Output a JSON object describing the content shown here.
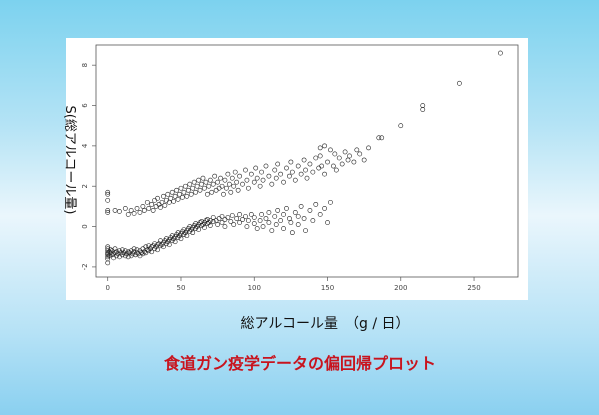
{
  "caption": "食道ガン疫学データの偏回帰プロット",
  "chart_data": {
    "type": "scatter",
    "title": "",
    "xlabel": "総アルコール量　（g / 日）",
    "ylabel": "S(総アルコール量)",
    "xlim": [
      -8,
      280
    ],
    "ylim": [
      -2.5,
      9
    ],
    "x_ticks": [
      0,
      50,
      100,
      150,
      200,
      250
    ],
    "y_ticks": [
      -2,
      0,
      2,
      4,
      6,
      8
    ],
    "x_tick_labels": [
      "0",
      "50",
      "100",
      "150",
      "200",
      "250"
    ],
    "y_tick_labels": [
      "-2",
      "0",
      "2",
      "4",
      "6",
      "8"
    ],
    "marker": "open-circle",
    "grid": false,
    "points": [
      [
        0,
        -1.1
      ],
      [
        0,
        -1.2
      ],
      [
        0,
        -1.3
      ],
      [
        0,
        -1.4
      ],
      [
        0,
        -1.5
      ],
      [
        0,
        -1.6
      ],
      [
        0,
        -1.0
      ],
      [
        0,
        -1.35
      ],
      [
        0,
        1.7
      ],
      [
        0,
        1.6
      ],
      [
        0,
        1.3
      ],
      [
        0,
        0.8
      ],
      [
        0,
        0.7
      ],
      [
        0,
        -1.8
      ],
      [
        1,
        -1.25
      ],
      [
        1,
        -1.45
      ],
      [
        2,
        -1.3
      ],
      [
        2,
        -1.15
      ],
      [
        3,
        -1.4
      ],
      [
        3,
        -1.2
      ],
      [
        4,
        -1.35
      ],
      [
        4,
        -1.55
      ],
      [
        5,
        -1.3
      ],
      [
        5,
        -1.1
      ],
      [
        6,
        -1.45
      ],
      [
        6,
        -1.25
      ],
      [
        7,
        -1.35
      ],
      [
        8,
        -1.5
      ],
      [
        8,
        -1.2
      ],
      [
        9,
        -1.3
      ],
      [
        10,
        -1.4
      ],
      [
        10,
        -1.15
      ],
      [
        11,
        -1.3
      ],
      [
        12,
        -1.45
      ],
      [
        12,
        -1.2
      ],
      [
        13,
        -1.35
      ],
      [
        14,
        -1.25
      ],
      [
        14,
        -1.5
      ],
      [
        15,
        -1.3
      ],
      [
        16,
        -1.2
      ],
      [
        16,
        -1.45
      ],
      [
        17,
        -1.35
      ],
      [
        18,
        -1.25
      ],
      [
        18,
        -1.1
      ],
      [
        19,
        -1.4
      ],
      [
        20,
        -1.3
      ],
      [
        20,
        -1.15
      ],
      [
        21,
        -1.35
      ],
      [
        22,
        -1.2
      ],
      [
        22,
        -1.45
      ],
      [
        23,
        -1.3
      ],
      [
        24,
        -1.1
      ],
      [
        24,
        -1.35
      ],
      [
        25,
        -1.25
      ],
      [
        26,
        -1.0
      ],
      [
        26,
        -1.3
      ],
      [
        27,
        -1.15
      ],
      [
        28,
        -1.2
      ],
      [
        28,
        -0.95
      ],
      [
        29,
        -1.1
      ],
      [
        30,
        -1.0
      ],
      [
        30,
        -1.25
      ],
      [
        31,
        -0.95
      ],
      [
        32,
        -1.1
      ],
      [
        32,
        -0.85
      ],
      [
        33,
        -1.0
      ],
      [
        34,
        -0.9
      ],
      [
        34,
        -1.15
      ],
      [
        35,
        -0.85
      ],
      [
        36,
        -0.95
      ],
      [
        36,
        -0.7
      ],
      [
        37,
        -0.9
      ],
      [
        38,
        -0.8
      ],
      [
        38,
        -1.0
      ],
      [
        39,
        -0.7
      ],
      [
        40,
        -0.85
      ],
      [
        40,
        -0.6
      ],
      [
        41,
        -0.75
      ],
      [
        42,
        -0.65
      ],
      [
        42,
        -0.9
      ],
      [
        43,
        -0.55
      ],
      [
        44,
        -0.7
      ],
      [
        44,
        -0.45
      ],
      [
        45,
        -0.6
      ],
      [
        46,
        -0.5
      ],
      [
        46,
        -0.75
      ],
      [
        47,
        -0.4
      ],
      [
        48,
        -0.55
      ],
      [
        48,
        -0.3
      ],
      [
        49,
        -0.45
      ],
      [
        50,
        -0.35
      ],
      [
        50,
        -0.6
      ],
      [
        51,
        -0.25
      ],
      [
        52,
        -0.4
      ],
      [
        52,
        -0.15
      ],
      [
        53,
        -0.3
      ],
      [
        54,
        -0.2
      ],
      [
        54,
        -0.45
      ],
      [
        55,
        -0.1
      ],
      [
        56,
        -0.25
      ],
      [
        56,
        0.0
      ],
      [
        57,
        -0.15
      ],
      [
        58,
        -0.05
      ],
      [
        58,
        -0.3
      ],
      [
        59,
        0.05
      ],
      [
        60,
        -0.1
      ],
      [
        60,
        0.15
      ],
      [
        61,
        0.0
      ],
      [
        62,
        0.1
      ],
      [
        62,
        -0.15
      ],
      [
        63,
        0.2
      ],
      [
        64,
        0.05
      ],
      [
        64,
        0.25
      ],
      [
        65,
        0.1
      ],
      [
        66,
        0.2
      ],
      [
        66,
        -0.05
      ],
      [
        67,
        0.3
      ],
      [
        68,
        0.15
      ],
      [
        68,
        0.35
      ],
      [
        69,
        0.2
      ],
      [
        70,
        0.3
      ],
      [
        70,
        0.05
      ],
      [
        72,
        0.25
      ],
      [
        72,
        0.45
      ],
      [
        74,
        0.3
      ],
      [
        75,
        0.1
      ],
      [
        76,
        0.4
      ],
      [
        78,
        0.2
      ],
      [
        78,
        0.5
      ],
      [
        80,
        0.35
      ],
      [
        80,
        0.0
      ],
      [
        82,
        0.45
      ],
      [
        84,
        0.25
      ],
      [
        85,
        0.55
      ],
      [
        86,
        0.1
      ],
      [
        88,
        0.4
      ],
      [
        90,
        0.6
      ],
      [
        90,
        0.2
      ],
      [
        92,
        0.35
      ],
      [
        94,
        0.5
      ],
      [
        95,
        0.0
      ],
      [
        96,
        0.3
      ],
      [
        98,
        0.6
      ],
      [
        100,
        0.15
      ],
      [
        100,
        0.45
      ],
      [
        102,
        -0.1
      ],
      [
        104,
        0.3
      ],
      [
        105,
        0.6
      ],
      [
        106,
        0.0
      ],
      [
        108,
        0.4
      ],
      [
        110,
        0.2
      ],
      [
        110,
        0.7
      ],
      [
        112,
        -0.2
      ],
      [
        114,
        0.5
      ],
      [
        115,
        0.1
      ],
      [
        116,
        0.8
      ],
      [
        118,
        0.3
      ],
      [
        120,
        0.6
      ],
      [
        120,
        -0.1
      ],
      [
        122,
        0.9
      ],
      [
        124,
        0.4
      ],
      [
        125,
        0.2
      ],
      [
        126,
        -0.3
      ],
      [
        128,
        0.7
      ],
      [
        130,
        0.5
      ],
      [
        130,
        0.1
      ],
      [
        132,
        1.0
      ],
      [
        134,
        0.4
      ],
      [
        135,
        -0.2
      ],
      [
        138,
        0.8
      ],
      [
        140,
        0.3
      ],
      [
        142,
        1.1
      ],
      [
        145,
        0.6
      ],
      [
        148,
        0.9
      ],
      [
        150,
        0.2
      ],
      [
        152,
        1.2
      ],
      [
        5,
        0.8
      ],
      [
        8,
        0.75
      ],
      [
        12,
        0.9
      ],
      [
        14,
        0.6
      ],
      [
        16,
        0.8
      ],
      [
        18,
        0.65
      ],
      [
        20,
        0.9
      ],
      [
        22,
        0.7
      ],
      [
        24,
        1.0
      ],
      [
        25,
        0.8
      ],
      [
        27,
        1.2
      ],
      [
        28,
        0.9
      ],
      [
        30,
        1.1
      ],
      [
        31,
        0.8
      ],
      [
        32,
        1.3
      ],
      [
        33,
        1.0
      ],
      [
        34,
        1.4
      ],
      [
        35,
        1.1
      ],
      [
        36,
        0.95
      ],
      [
        37,
        1.2
      ],
      [
        38,
        1.5
      ],
      [
        39,
        1.05
      ],
      [
        40,
        1.3
      ],
      [
        41,
        1.6
      ],
      [
        42,
        1.2
      ],
      [
        43,
        1.4
      ],
      [
        44,
        1.7
      ],
      [
        45,
        1.25
      ],
      [
        46,
        1.5
      ],
      [
        47,
        1.8
      ],
      [
        48,
        1.35
      ],
      [
        49,
        1.6
      ],
      [
        50,
        1.9
      ],
      [
        51,
        1.45
      ],
      [
        52,
        1.7
      ],
      [
        53,
        2.0
      ],
      [
        54,
        1.5
      ],
      [
        55,
        1.8
      ],
      [
        56,
        2.1
      ],
      [
        57,
        1.6
      ],
      [
        58,
        1.9
      ],
      [
        59,
        2.2
      ],
      [
        60,
        1.7
      ],
      [
        61,
        2.0
      ],
      [
        62,
        2.3
      ],
      [
        63,
        1.8
      ],
      [
        64,
        2.1
      ],
      [
        65,
        2.4
      ],
      [
        66,
        1.9
      ],
      [
        67,
        2.2
      ],
      [
        68,
        1.6
      ],
      [
        69,
        2.0
      ],
      [
        70,
        2.3
      ],
      [
        71,
        1.7
      ],
      [
        72,
        2.1
      ],
      [
        73,
        2.5
      ],
      [
        74,
        1.8
      ],
      [
        75,
        2.2
      ],
      [
        76,
        1.9
      ],
      [
        77,
        2.4
      ],
      [
        78,
        2.0
      ],
      [
        79,
        1.6
      ],
      [
        80,
        2.3
      ],
      [
        81,
        1.9
      ],
      [
        82,
        2.6
      ],
      [
        83,
        2.1
      ],
      [
        84,
        1.7
      ],
      [
        85,
        2.4
      ],
      [
        86,
        2.0
      ],
      [
        87,
        2.7
      ],
      [
        88,
        2.2
      ],
      [
        89,
        1.8
      ],
      [
        90,
        2.5
      ],
      [
        92,
        2.1
      ],
      [
        94,
        2.8
      ],
      [
        95,
        2.3
      ],
      [
        96,
        1.9
      ],
      [
        98,
        2.6
      ],
      [
        100,
        2.2
      ],
      [
        101,
        2.9
      ],
      [
        102,
        2.4
      ],
      [
        104,
        2.0
      ],
      [
        105,
        2.7
      ],
      [
        106,
        2.3
      ],
      [
        108,
        3.0
      ],
      [
        110,
        2.5
      ],
      [
        112,
        2.1
      ],
      [
        114,
        2.8
      ],
      [
        115,
        2.4
      ],
      [
        116,
        3.1
      ],
      [
        118,
        2.6
      ],
      [
        120,
        2.2
      ],
      [
        122,
        2.9
      ],
      [
        124,
        2.5
      ],
      [
        125,
        3.2
      ],
      [
        126,
        2.7
      ],
      [
        128,
        2.3
      ],
      [
        130,
        3.0
      ],
      [
        132,
        2.6
      ],
      [
        134,
        3.3
      ],
      [
        135,
        2.8
      ],
      [
        136,
        2.4
      ],
      [
        138,
        3.1
      ],
      [
        140,
        2.7
      ],
      [
        142,
        3.4
      ],
      [
        144,
        2.9
      ],
      [
        145,
        3.5
      ],
      [
        146,
        3.0
      ],
      [
        148,
        2.6
      ],
      [
        150,
        3.2
      ],
      [
        152,
        3.8
      ],
      [
        154,
        3.0
      ],
      [
        155,
        3.6
      ],
      [
        156,
        2.8
      ],
      [
        158,
        3.4
      ],
      [
        160,
        3.1
      ],
      [
        162,
        3.7
      ],
      [
        164,
        3.3
      ],
      [
        165,
        3.5
      ],
      [
        168,
        3.2
      ],
      [
        170,
        3.8
      ],
      [
        172,
        3.6
      ],
      [
        175,
        3.3
      ],
      [
        178,
        3.9
      ],
      [
        145,
        3.9
      ],
      [
        148,
        4.0
      ],
      [
        185,
        4.4
      ],
      [
        187,
        4.4
      ],
      [
        200,
        5.0
      ],
      [
        215,
        5.8
      ],
      [
        215,
        6.0
      ],
      [
        240,
        7.1
      ],
      [
        268,
        8.6
      ]
    ]
  }
}
